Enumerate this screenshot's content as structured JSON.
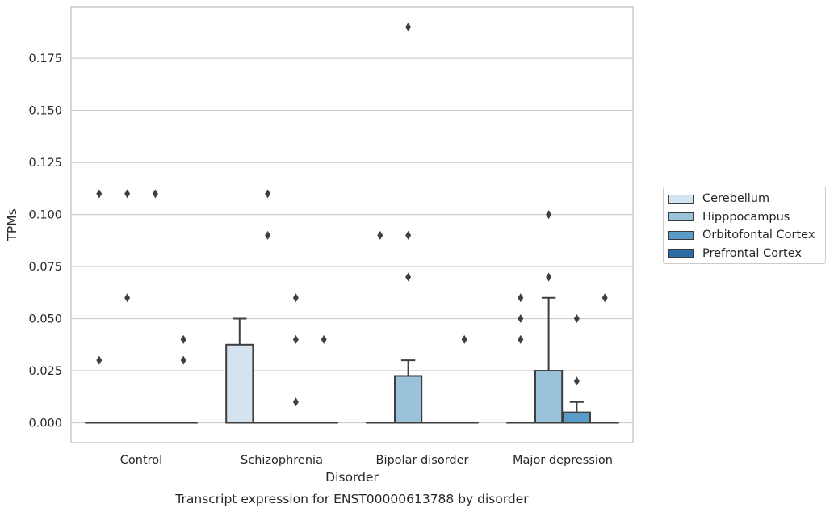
{
  "chart_data": {
    "type": "box",
    "title": "",
    "caption": "Transcript expression for ENST00000613788 by disorder",
    "xlabel": "Disorder",
    "ylabel": "TPMs",
    "ylim": [
      -0.0095,
      0.1995
    ],
    "yticks": [
      0.0,
      0.025,
      0.05,
      0.075,
      0.1,
      0.125,
      0.15,
      0.175
    ],
    "ytick_labels": [
      "0.000",
      "0.025",
      "0.050",
      "0.075",
      "0.100",
      "0.125",
      "0.150",
      "0.175"
    ],
    "grid": "horizontal",
    "legend_position": "right",
    "categories": [
      "Control",
      "Schizophrenia",
      "Bipolar disorder",
      "Major depression"
    ],
    "series": [
      {
        "name": "Cerebellum",
        "color": "#d3e3f0",
        "boxes": [
          {
            "q1": 0,
            "median": 0,
            "q3": 0,
            "whisker_low": 0,
            "whisker_high": 0,
            "outliers": [
              0.03,
              0.11
            ]
          },
          {
            "q1": 0,
            "median": 0,
            "q3": 0.0375,
            "whisker_low": 0,
            "whisker_high": 0.05,
            "outliers": []
          },
          {
            "q1": 0,
            "median": 0,
            "q3": 0,
            "whisker_low": 0,
            "whisker_high": 0,
            "outliers": [
              0.09
            ]
          },
          {
            "q1": 0,
            "median": 0,
            "q3": 0,
            "whisker_low": 0,
            "whisker_high": 0,
            "outliers": [
              0.04,
              0.05,
              0.06
            ]
          }
        ]
      },
      {
        "name": "Hipppocampus",
        "color": "#9ac3db",
        "boxes": [
          {
            "q1": 0,
            "median": 0,
            "q3": 0,
            "whisker_low": 0,
            "whisker_high": 0,
            "outliers": [
              0.06,
              0.11
            ]
          },
          {
            "q1": 0,
            "median": 0,
            "q3": 0,
            "whisker_low": 0,
            "whisker_high": 0,
            "outliers": [
              0.11,
              0.09
            ]
          },
          {
            "q1": 0,
            "median": 0,
            "q3": 0.0225,
            "whisker_low": 0,
            "whisker_high": 0.03,
            "outliers": [
              0.19,
              0.09,
              0.07
            ]
          },
          {
            "q1": 0,
            "median": 0,
            "q3": 0.025,
            "whisker_low": 0,
            "whisker_high": 0.06,
            "outliers": [
              0.1,
              0.07
            ]
          }
        ]
      },
      {
        "name": "Orbitofontal Cortex",
        "color": "#5b9bc8",
        "boxes": [
          {
            "q1": 0,
            "median": 0,
            "q3": 0,
            "whisker_low": 0,
            "whisker_high": 0,
            "outliers": [
              0.11
            ]
          },
          {
            "q1": 0,
            "median": 0,
            "q3": 0,
            "whisker_low": 0,
            "whisker_high": 0,
            "outliers": [
              0.06,
              0.04,
              0.01
            ]
          },
          {
            "q1": 0,
            "median": 0,
            "q3": 0,
            "whisker_low": 0,
            "whisker_high": 0,
            "outliers": []
          },
          {
            "q1": 0,
            "median": 0,
            "q3": 0.005,
            "whisker_low": 0,
            "whisker_high": 0.01,
            "outliers": [
              0.05,
              0.02
            ]
          }
        ]
      },
      {
        "name": "Prefrontal Cortex",
        "color": "#2d6ca6",
        "boxes": [
          {
            "q1": 0,
            "median": 0,
            "q3": 0,
            "whisker_low": 0,
            "whisker_high": 0,
            "outliers": [
              0.04,
              0.03
            ]
          },
          {
            "q1": 0,
            "median": 0,
            "q3": 0,
            "whisker_low": 0,
            "whisker_high": 0,
            "outliers": [
              0.04
            ]
          },
          {
            "q1": 0,
            "median": 0,
            "q3": 0,
            "whisker_low": 0,
            "whisker_high": 0,
            "outliers": [
              0.04
            ]
          },
          {
            "q1": 0,
            "median": 0,
            "q3": 0,
            "whisker_low": 0,
            "whisker_high": 0,
            "outliers": [
              0.06
            ]
          }
        ]
      }
    ]
  }
}
